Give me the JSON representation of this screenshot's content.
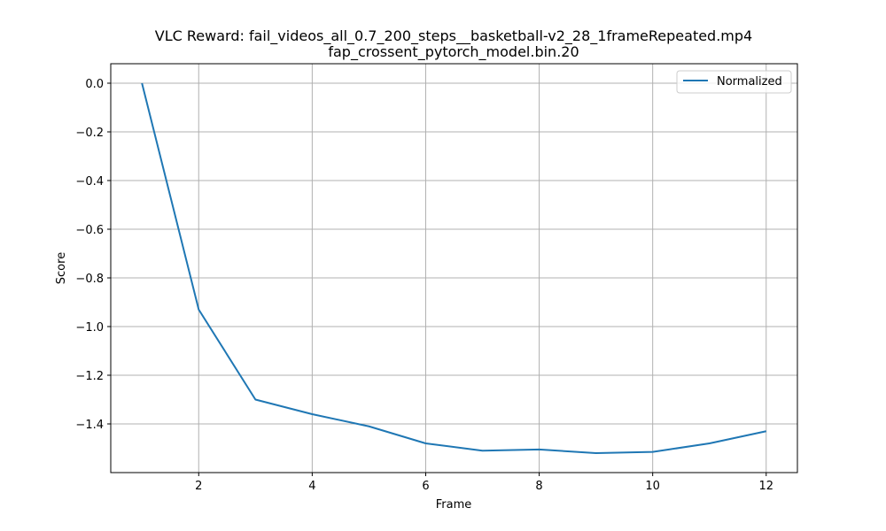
{
  "chart_data": {
    "type": "line",
    "title": "VLC Reward: fail_videos_all_0.7_200_steps__basketball-v2_28_1frameRepeated.mp4",
    "subtitle": "fap_crossent_pytorch_model.bin.20",
    "xlabel": "Frame",
    "ylabel": "Score",
    "xlim": [
      0.45,
      12.55
    ],
    "ylim": [
      -1.6,
      0.08
    ],
    "xticks": [
      2,
      4,
      6,
      8,
      10,
      12
    ],
    "xtick_labels": [
      "2",
      "4",
      "6",
      "8",
      "10",
      "12"
    ],
    "yticks": [
      0.0,
      -0.2,
      -0.4,
      -0.6,
      -0.8,
      -1.0,
      -1.2,
      -1.4
    ],
    "ytick_labels": [
      "0.0",
      "−0.2",
      "−0.4",
      "−0.6",
      "−0.8",
      "−1.0",
      "−1.2",
      "−1.4"
    ],
    "grid": true,
    "legend_position": "top-right",
    "series": [
      {
        "name": "Normalized",
        "color": "#1f77b4",
        "x": [
          1,
          2,
          3,
          4,
          5,
          6,
          7,
          8,
          9,
          10,
          11,
          12
        ],
        "y": [
          0.0,
          -0.93,
          -1.3,
          -1.36,
          -1.41,
          -1.48,
          -1.51,
          -1.505,
          -1.52,
          -1.515,
          -1.48,
          -1.43
        ]
      }
    ]
  }
}
